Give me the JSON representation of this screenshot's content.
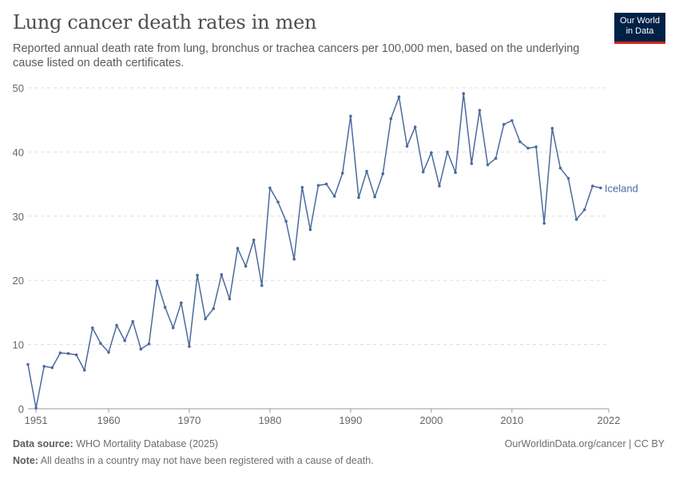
{
  "header": {
    "title": "Lung cancer death rates in men",
    "subtitle": "Reported annual death rate from lung, bronchus or trachea cancers per 100,000 men, based on the underlying cause listed on death certificates."
  },
  "logo": {
    "line1": "Our World",
    "line2": "in Data",
    "bg_color": "#002147",
    "accent_color": "#ce261e"
  },
  "footer": {
    "source_label": "Data source:",
    "source_text": "WHO Mortality Database (2025)",
    "note_label": "Note:",
    "note_text": "All deaths in a country may not have been registered with a cause of death.",
    "credit": "OurWorldinData.org/cancer | CC BY"
  },
  "chart_data": {
    "type": "line",
    "ylim": [
      0,
      50
    ],
    "xlim": [
      1950,
      2022
    ],
    "yticks": [
      0,
      10,
      20,
      30,
      40,
      50
    ],
    "xticks": [
      1951,
      1960,
      1970,
      1980,
      1990,
      2000,
      2010,
      2022
    ],
    "grid": "horizontal-dashed",
    "series": [
      {
        "name": "Iceland",
        "color": "#4c6a9c",
        "x": [
          1950,
          1951,
          1952,
          1953,
          1954,
          1955,
          1956,
          1957,
          1958,
          1959,
          1960,
          1961,
          1962,
          1963,
          1964,
          1965,
          1966,
          1967,
          1968,
          1969,
          1970,
          1971,
          1972,
          1973,
          1974,
          1975,
          1976,
          1977,
          1978,
          1979,
          1980,
          1981,
          1982,
          1983,
          1984,
          1985,
          1986,
          1987,
          1988,
          1989,
          1990,
          1991,
          1992,
          1993,
          1994,
          1995,
          1996,
          1997,
          1998,
          1999,
          2000,
          2001,
          2002,
          2003,
          2004,
          2005,
          2006,
          2007,
          2008,
          2009,
          2010,
          2011,
          2012,
          2013,
          2014,
          2015,
          2016,
          2017,
          2018,
          2019,
          2020,
          2021,
          2022
        ],
        "values": [
          6.9,
          0.1,
          6.6,
          6.4,
          8.7,
          8.6,
          8.4,
          6.0,
          12.6,
          10.2,
          8.8,
          13.0,
          10.6,
          13.6,
          9.3,
          10.1,
          19.9,
          15.8,
          12.6,
          16.5,
          9.7,
          20.8,
          14.0,
          15.6,
          20.9,
          17.1,
          25.0,
          22.2,
          26.3,
          19.2,
          34.4,
          32.2,
          29.2,
          23.3,
          34.5,
          27.9,
          34.8,
          35.0,
          33.1,
          36.7,
          45.6,
          32.9,
          37.0,
          33.0,
          36.6,
          45.2,
          48.6,
          40.9,
          43.9,
          36.9,
          39.9,
          34.7,
          40.0,
          36.8,
          49.1,
          38.2,
          46.5,
          38.0,
          39.0,
          44.3,
          44.9,
          41.6,
          40.6,
          40.8,
          28.9,
          43.7,
          37.5,
          35.9,
          29.5,
          31.0,
          34.7,
          34.4,
          null
        ]
      }
    ]
  }
}
